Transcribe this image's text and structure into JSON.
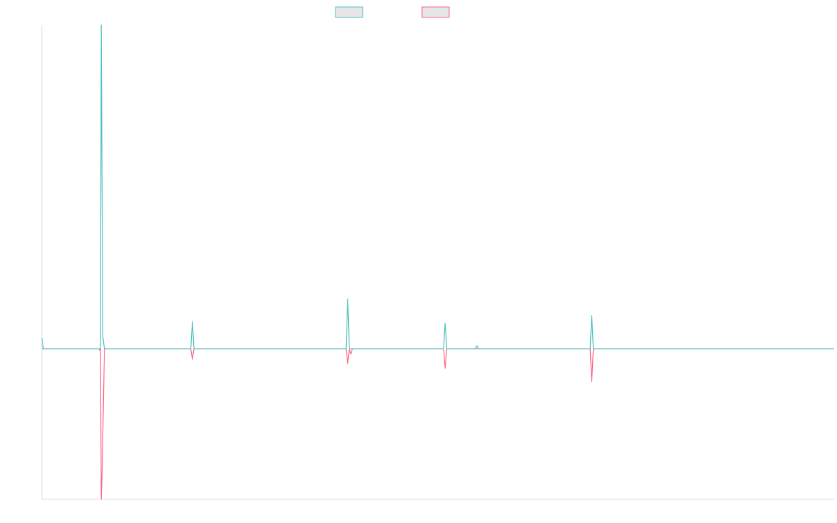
{
  "chart_data": {
    "type": "line",
    "title": "",
    "xlabel": "",
    "ylabel": "",
    "x_start": 0,
    "x_end": 1000,
    "ylim": [
      -10,
      21.5
    ],
    "grid": false,
    "legend_position": "top-center",
    "colors": {
      "axis": "#dddddd",
      "legend_fill": "#e6e6e6"
    },
    "series": [
      {
        "name": "",
        "color": "#4bc0c0",
        "points": [
          [
            0,
            0.7
          ],
          [
            2,
            0
          ],
          [
            10,
            0
          ],
          [
            72,
            0
          ],
          [
            74,
            0
          ],
          [
            75,
            21.5
          ],
          [
            77,
            0.8
          ],
          [
            79,
            0
          ],
          [
            188,
            0
          ],
          [
            190,
            1.8
          ],
          [
            192,
            0
          ],
          [
            384,
            0
          ],
          [
            386,
            3.3
          ],
          [
            388,
            0
          ],
          [
            507,
            0
          ],
          [
            509,
            1.7
          ],
          [
            511,
            0
          ],
          [
            547,
            0
          ],
          [
            549,
            0.2
          ],
          [
            551,
            0
          ],
          [
            692,
            0
          ],
          [
            694,
            2.2
          ],
          [
            696,
            0
          ],
          [
            1000,
            0
          ]
        ]
      },
      {
        "name": "",
        "color": "#ff6384",
        "points": [
          [
            0,
            0
          ],
          [
            72,
            0
          ],
          [
            73,
            -0.1
          ],
          [
            74,
            0
          ],
          [
            75,
            -10
          ],
          [
            76,
            -8.4
          ],
          [
            79,
            0
          ],
          [
            188,
            0
          ],
          [
            190,
            -0.7
          ],
          [
            192,
            0
          ],
          [
            384,
            0
          ],
          [
            386,
            -1
          ],
          [
            388,
            0
          ],
          [
            390,
            -0.35
          ],
          [
            392,
            0
          ],
          [
            507,
            0
          ],
          [
            509,
            -1.3
          ],
          [
            511,
            0
          ],
          [
            692,
            0
          ],
          [
            694,
            -2.2
          ],
          [
            696,
            0
          ],
          [
            1000,
            0
          ]
        ]
      }
    ]
  }
}
